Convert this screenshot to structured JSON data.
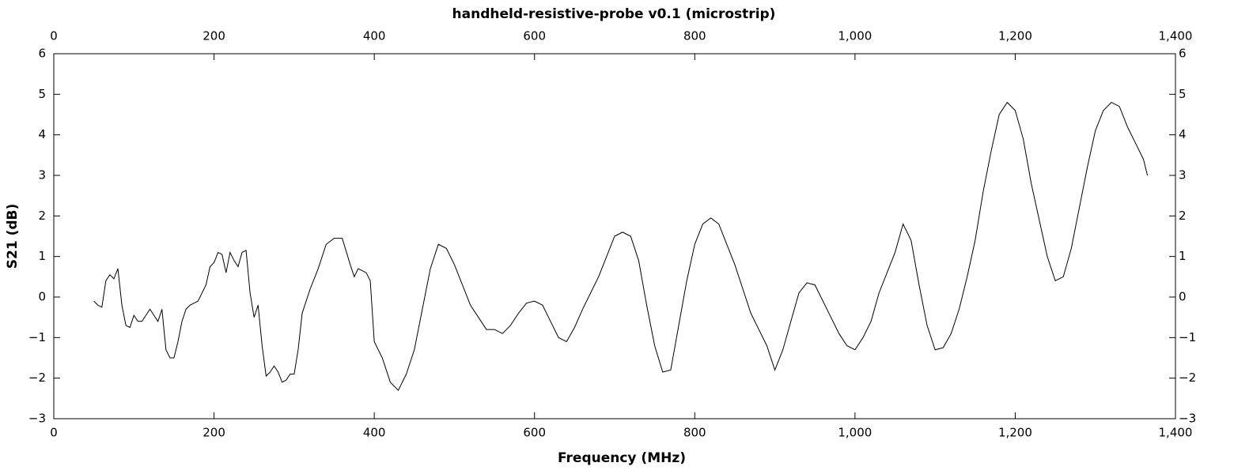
{
  "chart_data": {
    "type": "line",
    "title": "handheld-resistive-probe v0.1 (microstrip)",
    "x_label": "Frequency (MHz)",
    "y_label": "S21 (dB)",
    "xlim": [
      0,
      1400
    ],
    "xticks": [
      0,
      200,
      400,
      600,
      800,
      {
        "value": 1000,
        "label": "1,000"
      },
      {
        "value": 1200,
        "label": "1,200"
      },
      {
        "value": 1400,
        "label": "1,400"
      }
    ],
    "ylim": [
      -3,
      6
    ],
    "yticks": [
      {
        "value": -3,
        "label": "−3"
      },
      {
        "value": -2,
        "label": "−2"
      },
      {
        "value": -1,
        "label": "−1"
      },
      0,
      1,
      2,
      3,
      4,
      5,
      6
    ],
    "series": [
      {
        "name": "S21",
        "color": "#000000",
        "x": [
          50,
          55,
          60,
          65,
          70,
          75,
          80,
          85,
          90,
          95,
          100,
          105,
          110,
          115,
          120,
          125,
          130,
          135,
          140,
          145,
          150,
          155,
          160,
          165,
          170,
          180,
          190,
          195,
          200,
          205,
          210,
          215,
          220,
          225,
          230,
          235,
          240,
          245,
          250,
          255,
          260,
          265,
          270,
          275,
          280,
          285,
          290,
          295,
          300,
          305,
          310,
          320,
          330,
          340,
          350,
          360,
          370,
          375,
          380,
          390,
          395,
          400,
          410,
          420,
          430,
          440,
          450,
          460,
          470,
          480,
          490,
          500,
          510,
          520,
          530,
          540,
          550,
          560,
          570,
          580,
          590,
          600,
          610,
          620,
          630,
          640,
          650,
          660,
          670,
          680,
          690,
          700,
          710,
          720,
          730,
          740,
          750,
          760,
          770,
          780,
          790,
          800,
          810,
          820,
          830,
          840,
          850,
          860,
          870,
          880,
          890,
          900,
          910,
          920,
          930,
          940,
          950,
          960,
          970,
          980,
          990,
          1000,
          1010,
          1020,
          1030,
          1040,
          1050,
          1060,
          1070,
          1080,
          1090,
          1100,
          1110,
          1120,
          1130,
          1140,
          1150,
          1160,
          1170,
          1180,
          1190,
          1200,
          1210,
          1220,
          1230,
          1240,
          1250,
          1260,
          1270,
          1280,
          1290,
          1300,
          1310,
          1320,
          1330,
          1340,
          1350,
          1360,
          1365
        ],
        "values": [
          -0.1,
          -0.2,
          -0.25,
          0.4,
          0.55,
          0.45,
          0.7,
          -0.2,
          -0.7,
          -0.75,
          -0.45,
          -0.6,
          -0.6,
          -0.45,
          -0.3,
          -0.45,
          -0.6,
          -0.3,
          -1.3,
          -1.5,
          -1.5,
          -1.1,
          -0.6,
          -0.3,
          -0.2,
          -0.1,
          0.3,
          0.75,
          0.85,
          1.1,
          1.05,
          0.6,
          1.1,
          0.9,
          0.75,
          1.1,
          1.15,
          0.1,
          -0.5,
          -0.2,
          -1.2,
          -1.95,
          -1.85,
          -1.7,
          -1.85,
          -2.1,
          -2.05,
          -1.9,
          -1.9,
          -1.3,
          -0.4,
          0.2,
          0.7,
          1.3,
          1.45,
          1.45,
          0.8,
          0.5,
          0.7,
          0.6,
          0.4,
          -1.1,
          -1.5,
          -2.1,
          -2.3,
          -1.9,
          -1.3,
          -0.3,
          0.7,
          1.3,
          1.2,
          0.8,
          0.3,
          -0.2,
          -0.5,
          -0.8,
          -0.8,
          -0.9,
          -0.7,
          -0.4,
          -0.15,
          -0.1,
          -0.2,
          -0.6,
          -1.0,
          -1.1,
          -0.75,
          -0.3,
          0.1,
          0.5,
          1.0,
          1.5,
          1.6,
          1.5,
          0.9,
          -0.2,
          -1.2,
          -1.85,
          -1.8,
          -0.7,
          0.4,
          1.3,
          1.8,
          1.95,
          1.8,
          1.3,
          0.8,
          0.2,
          -0.4,
          -0.8,
          -1.2,
          -1.8,
          -1.3,
          -0.6,
          0.1,
          0.35,
          0.3,
          -0.1,
          -0.5,
          -0.9,
          -1.2,
          -1.3,
          -1.0,
          -0.6,
          0.1,
          0.6,
          1.1,
          1.8,
          1.4,
          0.3,
          -0.7,
          -1.3,
          -1.25,
          -0.9,
          -0.3,
          0.5,
          1.4,
          2.6,
          3.6,
          4.5,
          4.8,
          4.6,
          3.9,
          2.8,
          1.9,
          1.0,
          0.4,
          0.5,
          1.2,
          2.2,
          3.2,
          4.1,
          4.6,
          4.8,
          4.7,
          4.2,
          3.8,
          3.4,
          3.0
        ]
      }
    ]
  }
}
